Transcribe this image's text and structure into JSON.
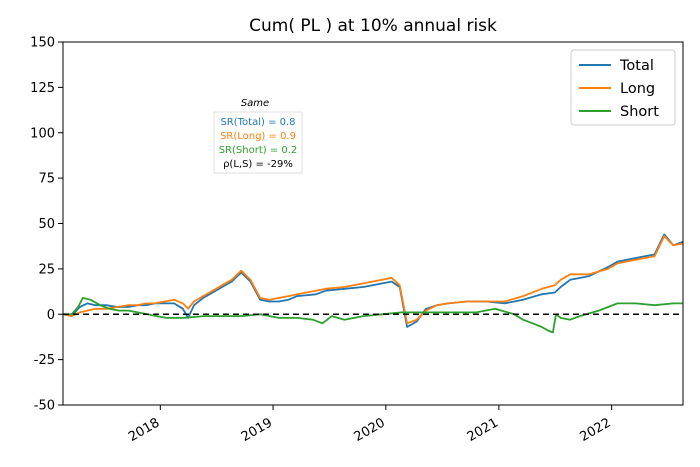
{
  "chart_data": {
    "type": "line",
    "title": "Cum( PL ) at 10% annual risk",
    "xlabel": "",
    "ylabel": "",
    "xlim": [
      "2017-02-20",
      "2022-08-20"
    ],
    "ylim": [
      -50,
      150
    ],
    "y_ticks": [
      150,
      125,
      100,
      75,
      50,
      25,
      0,
      -25,
      -50
    ],
    "x_ticks": [
      {
        "date": "2018-01-01",
        "label": "2018"
      },
      {
        "date": "2019-01-01",
        "label": "2019"
      },
      {
        "date": "2020-01-01",
        "label": "2020"
      },
      {
        "date": "2021-01-01",
        "label": "2021"
      },
      {
        "date": "2022-01-01",
        "label": "2022"
      }
    ],
    "grid": false,
    "legend_placement": "top-right",
    "reference_line": {
      "y": 0,
      "style": "dashed",
      "color": "#000000"
    },
    "annotation": {
      "title": "Same",
      "lines": [
        {
          "text": "SR(Total) = 0.8",
          "color": "#1f77b4"
        },
        {
          "text": "SR(Long) = 0.9",
          "color": "#ff7f0e"
        },
        {
          "text": "SR(Short) = 0.2",
          "color": "#2ca02c"
        },
        {
          "text": "ρ(L,S) = -29%",
          "color": "#000000"
        }
      ]
    },
    "series": [
      {
        "name": "Total",
        "color": "#1f77b4",
        "points": [
          [
            "2017-02-20",
            0
          ],
          [
            "2017-03-20",
            -1
          ],
          [
            "2017-04-15",
            4
          ],
          [
            "2017-05-10",
            6
          ],
          [
            "2017-06-05",
            5
          ],
          [
            "2017-07-10",
            5
          ],
          [
            "2017-08-15",
            4
          ],
          [
            "2017-09-20",
            4
          ],
          [
            "2017-10-20",
            5
          ],
          [
            "2017-11-15",
            5
          ],
          [
            "2017-12-15",
            6
          ],
          [
            "2018-01-15",
            6
          ],
          [
            "2018-02-15",
            6
          ],
          [
            "2018-03-15",
            3
          ],
          [
            "2018-04-01",
            -2
          ],
          [
            "2018-04-20",
            5
          ],
          [
            "2018-05-20",
            9
          ],
          [
            "2018-06-20",
            12
          ],
          [
            "2018-07-20",
            15
          ],
          [
            "2018-08-20",
            18
          ],
          [
            "2018-09-20",
            23
          ],
          [
            "2018-10-20",
            18
          ],
          [
            "2018-11-20",
            8
          ],
          [
            "2018-12-20",
            7
          ],
          [
            "2019-01-20",
            7
          ],
          [
            "2019-02-20",
            8
          ],
          [
            "2019-03-20",
            10
          ],
          [
            "2019-05-20",
            11
          ],
          [
            "2019-06-20",
            13
          ],
          [
            "2019-08-20",
            14
          ],
          [
            "2019-10-20",
            15
          ],
          [
            "2019-12-20",
            17
          ],
          [
            "2020-01-20",
            18
          ],
          [
            "2020-02-15",
            15
          ],
          [
            "2020-03-10",
            -7
          ],
          [
            "2020-04-10",
            -4
          ],
          [
            "2020-05-10",
            3
          ],
          [
            "2020-06-15",
            5
          ],
          [
            "2020-07-20",
            6
          ],
          [
            "2020-09-20",
            7
          ],
          [
            "2020-11-20",
            7
          ],
          [
            "2021-01-20",
            6
          ],
          [
            "2021-03-20",
            8
          ],
          [
            "2021-05-20",
            11
          ],
          [
            "2021-07-01",
            12
          ],
          [
            "2021-07-20",
            15
          ],
          [
            "2021-08-20",
            19
          ],
          [
            "2021-10-20",
            21
          ],
          [
            "2021-12-20",
            26
          ],
          [
            "2022-01-20",
            29
          ],
          [
            "2022-03-20",
            31
          ],
          [
            "2022-05-20",
            33
          ],
          [
            "2022-06-20",
            44
          ],
          [
            "2022-07-20",
            38
          ],
          [
            "2022-08-20",
            40
          ]
        ]
      },
      {
        "name": "Long",
        "color": "#ff7f0e",
        "points": [
          [
            "2017-02-20",
            0
          ],
          [
            "2017-03-20",
            -1
          ],
          [
            "2017-04-15",
            1
          ],
          [
            "2017-05-10",
            2
          ],
          [
            "2017-06-05",
            3
          ],
          [
            "2017-07-10",
            3
          ],
          [
            "2017-08-15",
            4
          ],
          [
            "2017-09-20",
            5
          ],
          [
            "2017-10-20",
            5
          ],
          [
            "2017-11-15",
            6
          ],
          [
            "2017-12-15",
            6
          ],
          [
            "2018-01-15",
            7
          ],
          [
            "2018-02-15",
            8
          ],
          [
            "2018-03-15",
            6
          ],
          [
            "2018-04-01",
            3
          ],
          [
            "2018-04-20",
            7
          ],
          [
            "2018-05-20",
            10
          ],
          [
            "2018-06-20",
            13
          ],
          [
            "2018-07-20",
            16
          ],
          [
            "2018-08-20",
            19
          ],
          [
            "2018-09-20",
            24
          ],
          [
            "2018-10-20",
            19
          ],
          [
            "2018-11-20",
            9
          ],
          [
            "2018-12-20",
            8
          ],
          [
            "2019-01-20",
            9
          ],
          [
            "2019-02-20",
            10
          ],
          [
            "2019-03-20",
            11
          ],
          [
            "2019-05-20",
            13
          ],
          [
            "2019-06-20",
            14
          ],
          [
            "2019-08-20",
            15
          ],
          [
            "2019-10-20",
            17
          ],
          [
            "2019-12-20",
            19
          ],
          [
            "2020-01-20",
            20
          ],
          [
            "2020-02-15",
            16
          ],
          [
            "2020-03-10",
            -5
          ],
          [
            "2020-04-10",
            -3
          ],
          [
            "2020-05-10",
            2
          ],
          [
            "2020-06-15",
            5
          ],
          [
            "2020-07-20",
            6
          ],
          [
            "2020-09-20",
            7
          ],
          [
            "2020-11-20",
            7
          ],
          [
            "2021-01-20",
            7
          ],
          [
            "2021-03-20",
            10
          ],
          [
            "2021-05-20",
            14
          ],
          [
            "2021-07-01",
            16
          ],
          [
            "2021-07-20",
            19
          ],
          [
            "2021-08-20",
            22
          ],
          [
            "2021-10-20",
            22
          ],
          [
            "2021-12-20",
            25
          ],
          [
            "2022-01-20",
            28
          ],
          [
            "2022-03-20",
            30
          ],
          [
            "2022-05-20",
            32
          ],
          [
            "2022-06-20",
            43
          ],
          [
            "2022-07-20",
            38
          ],
          [
            "2022-08-20",
            39
          ]
        ]
      },
      {
        "name": "Short",
        "color": "#2ca02c",
        "points": [
          [
            "2017-02-20",
            0
          ],
          [
            "2017-03-20",
            0
          ],
          [
            "2017-04-10",
            4
          ],
          [
            "2017-04-25",
            9
          ],
          [
            "2017-05-20",
            8
          ],
          [
            "2017-06-20",
            5
          ],
          [
            "2017-07-20",
            3
          ],
          [
            "2017-08-20",
            2
          ],
          [
            "2017-09-20",
            2
          ],
          [
            "2017-10-20",
            1
          ],
          [
            "2017-11-20",
            0
          ],
          [
            "2017-12-20",
            -1
          ],
          [
            "2018-01-20",
            -2
          ],
          [
            "2018-03-20",
            -2
          ],
          [
            "2018-05-20",
            -1
          ],
          [
            "2018-07-20",
            -1
          ],
          [
            "2018-09-20",
            -1
          ],
          [
            "2018-11-20",
            0
          ],
          [
            "2019-01-20",
            -2
          ],
          [
            "2019-03-20",
            -2
          ],
          [
            "2019-05-10",
            -3
          ],
          [
            "2019-06-10",
            -5
          ],
          [
            "2019-07-10",
            -1
          ],
          [
            "2019-08-20",
            -3
          ],
          [
            "2019-10-20",
            -1
          ],
          [
            "2019-12-20",
            0
          ],
          [
            "2020-02-20",
            1
          ],
          [
            "2020-04-20",
            1
          ],
          [
            "2020-06-20",
            1
          ],
          [
            "2020-08-20",
            1
          ],
          [
            "2020-10-20",
            1
          ],
          [
            "2020-12-20",
            3
          ],
          [
            "2021-02-20",
            0
          ],
          [
            "2021-03-20",
            -3
          ],
          [
            "2021-04-20",
            -5
          ],
          [
            "2021-05-20",
            -7
          ],
          [
            "2021-06-10",
            -9
          ],
          [
            "2021-06-25",
            -10
          ],
          [
            "2021-07-05",
            0
          ],
          [
            "2021-07-20",
            -2
          ],
          [
            "2021-08-20",
            -3
          ],
          [
            "2021-09-20",
            -1
          ],
          [
            "2021-11-20",
            2
          ],
          [
            "2022-01-20",
            6
          ],
          [
            "2022-03-20",
            6
          ],
          [
            "2022-05-20",
            5
          ],
          [
            "2022-07-20",
            6
          ],
          [
            "2022-08-20",
            6
          ]
        ]
      }
    ]
  }
}
